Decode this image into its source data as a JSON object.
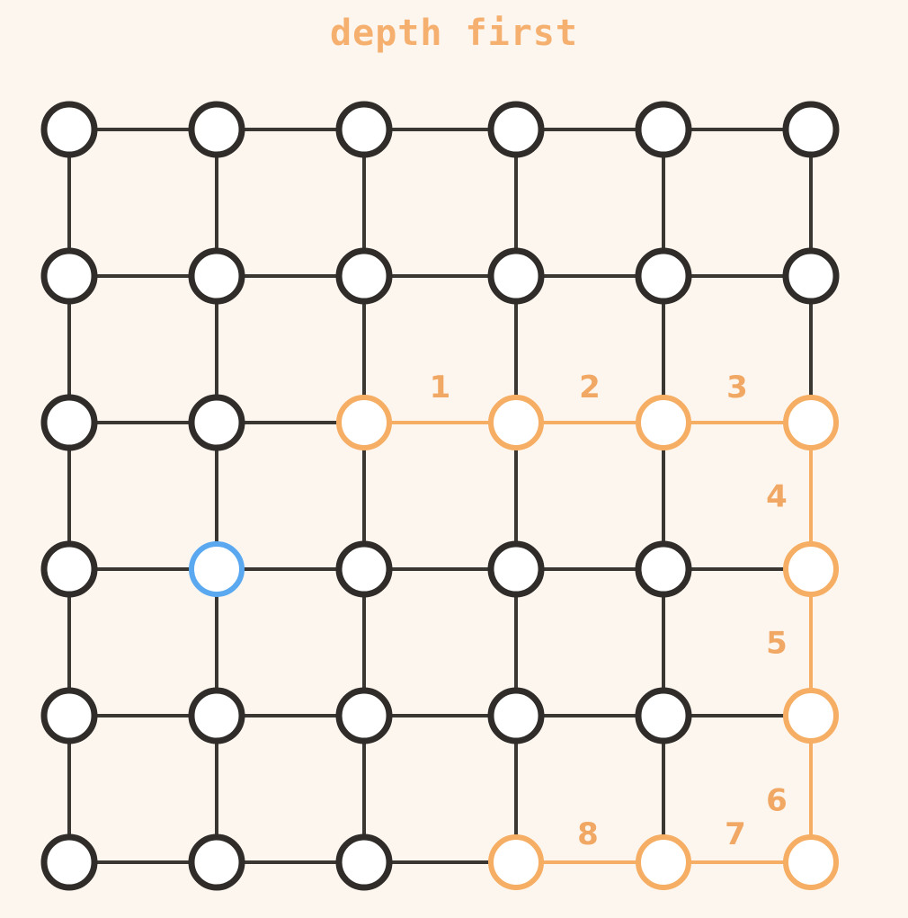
{
  "title": "depth first",
  "colors": {
    "background": "#fdf6ef",
    "edge": "#3a3632",
    "node_fill": "#ffffff",
    "node_stroke": "#2f2c29",
    "path": "#f5ae63",
    "start": "#5aa9f0",
    "label": "#f0a864"
  },
  "grid": {
    "rows": 6,
    "cols": 6
  },
  "start_node": [
    3,
    1
  ],
  "path_nodes": [
    [
      2,
      2
    ],
    [
      2,
      3
    ],
    [
      2,
      4
    ],
    [
      2,
      5
    ],
    [
      3,
      5
    ],
    [
      4,
      5
    ],
    [
      5,
      5
    ],
    [
      5,
      4
    ],
    [
      5,
      3
    ]
  ],
  "steps": [
    {
      "label": "1",
      "from": [
        2,
        2
      ],
      "to": [
        2,
        3
      ]
    },
    {
      "label": "2",
      "from": [
        2,
        3
      ],
      "to": [
        2,
        4
      ]
    },
    {
      "label": "3",
      "from": [
        2,
        4
      ],
      "to": [
        2,
        5
      ]
    },
    {
      "label": "4",
      "from": [
        2,
        5
      ],
      "to": [
        3,
        5
      ]
    },
    {
      "label": "5",
      "from": [
        3,
        5
      ],
      "to": [
        4,
        5
      ]
    },
    {
      "label": "6",
      "from": [
        4,
        5
      ],
      "to": [
        5,
        5
      ]
    },
    {
      "label": "7",
      "from": [
        5,
        5
      ],
      "to": [
        5,
        4
      ]
    },
    {
      "label": "8",
      "from": [
        5,
        4
      ],
      "to": [
        5,
        3
      ]
    }
  ]
}
